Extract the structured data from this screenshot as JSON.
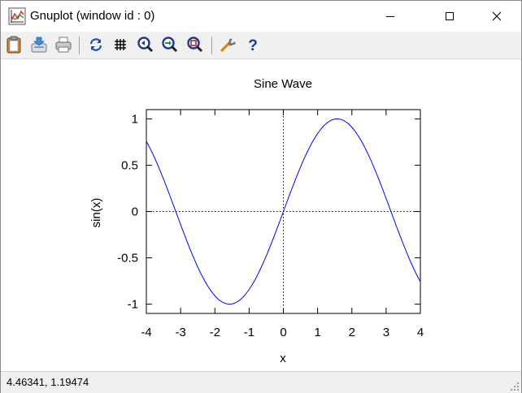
{
  "window": {
    "title": "Gnuplot (window id : 0)"
  },
  "toolbar": {
    "buttons": [
      {
        "icon": "clipboard-icon"
      },
      {
        "icon": "save-icon"
      },
      {
        "icon": "print-icon"
      },
      {
        "icon": "replot-icon"
      },
      {
        "icon": "grid-icon"
      },
      {
        "icon": "zoom-previous-icon"
      },
      {
        "icon": "zoom-next-icon"
      },
      {
        "icon": "unzoom-icon"
      },
      {
        "icon": "options-icon"
      },
      {
        "icon": "help-icon"
      }
    ]
  },
  "status": {
    "coordinates": "4.46341,  1.19474"
  },
  "chart_data": {
    "type": "line",
    "title": "Sine Wave",
    "xlabel": "x",
    "ylabel": "sin(x)",
    "xlim": [
      -4,
      4
    ],
    "ylim": [
      -1.1,
      1.1
    ],
    "x_ticks": [
      "-4",
      "-3",
      "-2",
      "-1",
      "0",
      "1",
      "2",
      "3",
      "4"
    ],
    "y_ticks": [
      "1",
      "0.5",
      "0",
      "-0.5",
      "-1"
    ],
    "zero_axes": true,
    "line_color": "#0000ff",
    "series": [
      {
        "function": "sin(x)",
        "x": [
          -4,
          -3.5,
          -3,
          -2.5,
          -2,
          -1.5708,
          -1,
          -0.5,
          0,
          0.5,
          1,
          1.5708,
          2,
          2.5,
          3,
          3.5,
          4
        ],
        "y": [
          0.757,
          0.351,
          -0.141,
          -0.598,
          -0.909,
          -1,
          -0.841,
          -0.479,
          0,
          0.479,
          0.841,
          1,
          0.909,
          0.598,
          0.141,
          -0.351,
          -0.757
        ]
      }
    ]
  }
}
